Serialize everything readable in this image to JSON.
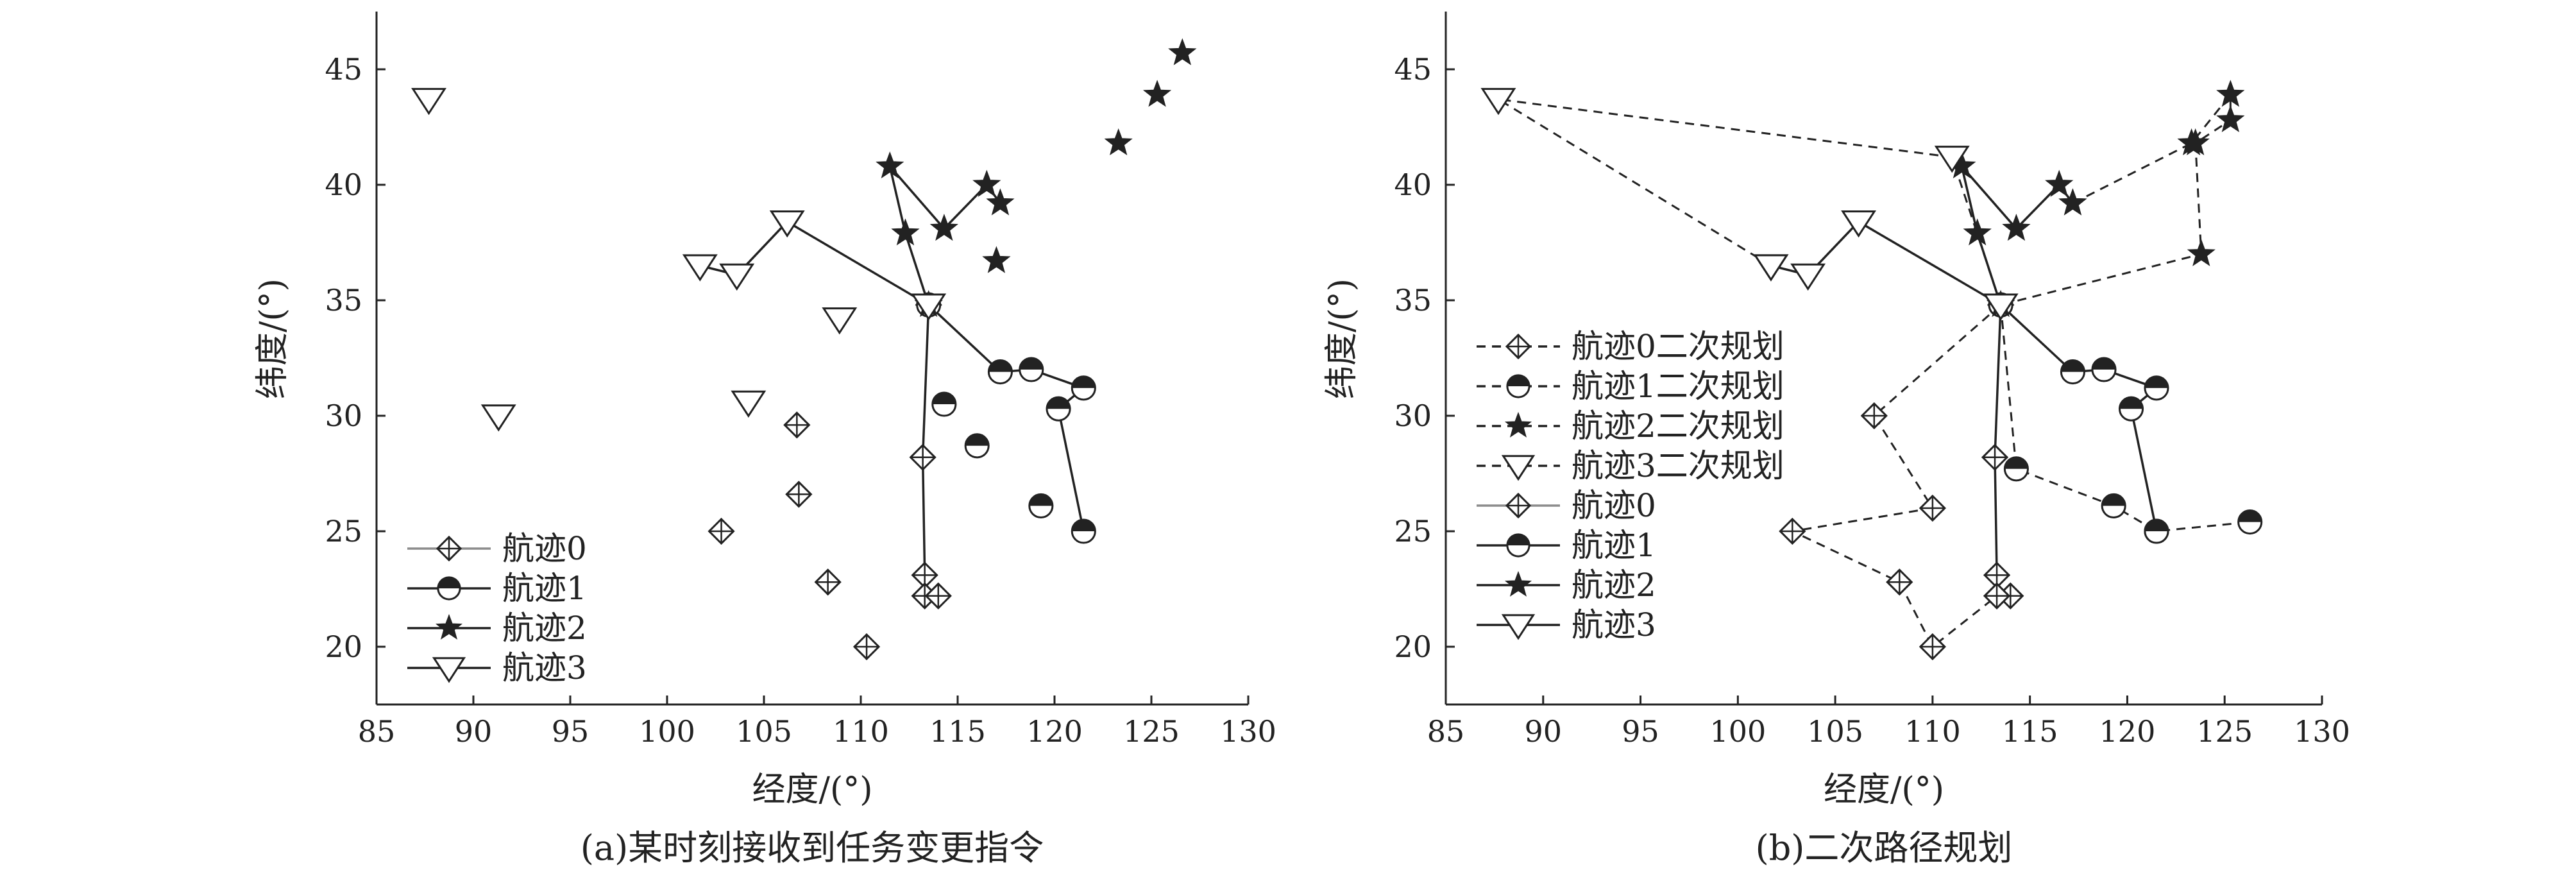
{
  "colors": {
    "ink": "#222222",
    "track0_line": "#8c8c8c",
    "background": "#ffffff"
  },
  "chart_data": [
    {
      "type": "scatter",
      "caption": "(a)某时刻接收到任务变更指令",
      "xlabel": "经度/(°)",
      "ylabel": "纬度/(°)",
      "xlim": [
        85,
        130
      ],
      "ylim": [
        17.5,
        47.5
      ],
      "xticks": [
        85,
        90,
        95,
        100,
        105,
        110,
        115,
        120,
        125,
        130
      ],
      "yticks": [
        20,
        25,
        30,
        35,
        40,
        45
      ],
      "legend_position": "bottom-left",
      "legend": [
        {
          "label": "航迹0",
          "marker": "diamond-plus",
          "line": "solid-gray"
        },
        {
          "label": "航迹1",
          "marker": "half-circle",
          "line": "solid"
        },
        {
          "label": "航迹2",
          "marker": "star",
          "line": "solid"
        },
        {
          "label": "航迹3",
          "marker": "triangle-down",
          "line": "solid"
        }
      ],
      "series": [
        {
          "name": "航迹0",
          "marker": "diamond-plus",
          "line": "solid",
          "points": [
            [
              113.5,
              34.8
            ],
            [
              113.2,
              28.2
            ],
            [
              113.3,
              23.1
            ],
            [
              113.3,
              22.2
            ],
            [
              114.0,
              22.2
            ]
          ]
        },
        {
          "name": "航迹0 (unvisited)",
          "marker": "diamond-plus",
          "line": "none",
          "points": [
            [
              106.7,
              29.6
            ],
            [
              106.8,
              26.6
            ],
            [
              102.8,
              25.0
            ],
            [
              108.3,
              22.8
            ],
            [
              110.3,
              20.0
            ]
          ]
        },
        {
          "name": "航迹1",
          "marker": "half-circle",
          "line": "solid",
          "points": [
            [
              113.5,
              34.8
            ],
            [
              117.2,
              31.9
            ],
            [
              118.8,
              32.0
            ],
            [
              121.5,
              31.2
            ],
            [
              120.2,
              30.3
            ],
            [
              121.5,
              25.0
            ]
          ]
        },
        {
          "name": "航迹1 (unvisited)",
          "marker": "half-circle",
          "line": "none",
          "points": [
            [
              114.3,
              30.5
            ],
            [
              116.0,
              28.7
            ],
            [
              119.3,
              26.1
            ]
          ]
        },
        {
          "name": "航迹2",
          "marker": "star",
          "line": "solid",
          "points": [
            [
              113.5,
              34.8
            ],
            [
              112.3,
              37.9
            ],
            [
              111.5,
              40.8
            ],
            [
              114.3,
              38.1
            ],
            [
              116.5,
              40.0
            ],
            [
              117.2,
              39.2
            ]
          ]
        },
        {
          "name": "航迹2 (unvisited)",
          "marker": "star",
          "line": "none",
          "points": [
            [
              117.0,
              36.7
            ],
            [
              123.3,
              41.8
            ],
            [
              125.3,
              43.9
            ],
            [
              126.6,
              45.7
            ]
          ]
        },
        {
          "name": "航迹3",
          "marker": "triangle-down",
          "line": "solid",
          "points": [
            [
              113.5,
              34.8
            ],
            [
              106.2,
              38.4
            ],
            [
              103.6,
              36.1
            ],
            [
              101.7,
              36.5
            ]
          ]
        },
        {
          "name": "航迹3 (unvisited)",
          "marker": "triangle-down",
          "line": "none",
          "points": [
            [
              87.7,
              43.7
            ],
            [
              91.3,
              30.0
            ],
            [
              104.2,
              30.6
            ],
            [
              108.9,
              34.2
            ]
          ]
        }
      ]
    },
    {
      "type": "scatter",
      "caption": "(b)二次路径规划",
      "xlabel": "经度/(°)",
      "ylabel": "纬度/(°)",
      "xlim": [
        85,
        130
      ],
      "ylim": [
        17.5,
        47.5
      ],
      "xticks": [
        85,
        90,
        95,
        100,
        105,
        110,
        115,
        120,
        125,
        130
      ],
      "yticks": [
        20,
        25,
        30,
        35,
        40,
        45
      ],
      "legend_position": "left",
      "legend": [
        {
          "label": "航迹0二次规划",
          "marker": "diamond-plus",
          "line": "dashed"
        },
        {
          "label": "航迹1二次规划",
          "marker": "half-circle",
          "line": "dashed"
        },
        {
          "label": "航迹2二次规划",
          "marker": "star",
          "line": "dashed"
        },
        {
          "label": "航迹3二次规划",
          "marker": "triangle-down",
          "line": "dashed"
        },
        {
          "label": "航迹0",
          "marker": "diamond-plus",
          "line": "solid-gray"
        },
        {
          "label": "航迹1",
          "marker": "half-circle",
          "line": "solid"
        },
        {
          "label": "航迹2",
          "marker": "star",
          "line": "solid"
        },
        {
          "label": "航迹3",
          "marker": "triangle-down",
          "line": "solid"
        }
      ],
      "series": [
        {
          "name": "航迹0",
          "marker": "diamond-plus",
          "line": "solid",
          "points": [
            [
              113.5,
              34.8
            ],
            [
              113.2,
              28.2
            ],
            [
              113.3,
              23.1
            ],
            [
              113.3,
              22.2
            ],
            [
              114.0,
              22.2
            ]
          ]
        },
        {
          "name": "航迹1",
          "marker": "half-circle",
          "line": "solid",
          "points": [
            [
              113.5,
              34.8
            ],
            [
              117.2,
              31.9
            ],
            [
              118.8,
              32.0
            ],
            [
              121.5,
              31.2
            ],
            [
              120.2,
              30.3
            ],
            [
              121.5,
              25.0
            ]
          ]
        },
        {
          "name": "航迹2",
          "marker": "star",
          "line": "solid",
          "points": [
            [
              113.5,
              34.8
            ],
            [
              112.3,
              37.9
            ],
            [
              111.5,
              40.8
            ],
            [
              114.3,
              38.1
            ],
            [
              116.5,
              40.0
            ],
            [
              117.2,
              39.2
            ]
          ]
        },
        {
          "name": "航迹3",
          "marker": "triangle-down",
          "line": "solid",
          "points": [
            [
              113.5,
              34.8
            ],
            [
              106.2,
              38.4
            ],
            [
              103.6,
              36.1
            ],
            [
              101.7,
              36.5
            ]
          ]
        },
        {
          "name": "航迹0二次规划",
          "marker": "diamond-plus",
          "line": "dashed",
          "points": [
            [
              113.5,
              34.8
            ],
            [
              107.0,
              30.0
            ],
            [
              110.0,
              26.0
            ],
            [
              102.8,
              25.0
            ],
            [
              108.3,
              22.8
            ],
            [
              110.0,
              20.0
            ],
            [
              113.3,
              22.2
            ]
          ]
        },
        {
          "name": "航迹1二次规划",
          "marker": "half-circle",
          "line": "dashed",
          "points": [
            [
              113.5,
              34.8
            ],
            [
              114.3,
              27.7
            ],
            [
              119.3,
              26.1
            ],
            [
              121.5,
              25.0
            ],
            [
              126.3,
              25.4
            ]
          ]
        },
        {
          "name": "航迹2二次规划",
          "marker": "star",
          "line": "dashed",
          "points": [
            [
              117.2,
              39.2
            ],
            [
              123.3,
              41.8
            ],
            [
              125.3,
              43.9
            ],
            [
              125.3,
              42.8
            ],
            [
              123.5,
              41.8
            ],
            [
              123.8,
              37.0
            ],
            [
              113.5,
              34.8
            ]
          ]
        },
        {
          "name": "航迹3二次规划",
          "marker": "triangle-down",
          "line": "dashed",
          "points": [
            [
              113.5,
              34.8
            ],
            [
              111.0,
              41.2
            ],
            [
              87.7,
              43.7
            ],
            [
              101.7,
              36.5
            ]
          ]
        }
      ]
    }
  ]
}
